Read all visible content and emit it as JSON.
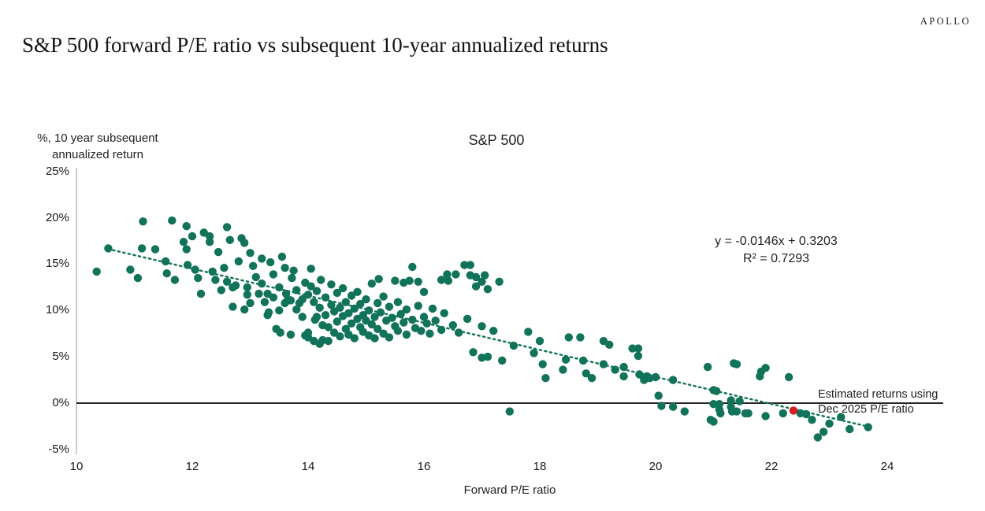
{
  "header": {
    "logo": "APOLLO",
    "title": "S&P 500 forward P/E ratio vs subsequent 10-year annualized returns"
  },
  "annotation": {
    "line1": "Estimated returns using",
    "line2": "Dec 2025 P/E ratio"
  },
  "colors": {
    "dot": "#11735a",
    "trend": "#127458",
    "highlight": "#d02026",
    "y_axis_line": "#ababab",
    "zero_line": "#262626"
  },
  "chart_data": {
    "type": "scatter",
    "title": "S&P 500",
    "xlabel": "Forward P/E ratio",
    "ylabel": "%, 10 year subsequent annualized return",
    "ylabel_lines": [
      "%, 10 year subsequent",
      "annualized return"
    ],
    "xlim": [
      10,
      25
    ],
    "ylim_percent": [
      -5,
      25
    ],
    "grid": false,
    "x_ticks": [
      10,
      12,
      14,
      16,
      18,
      20,
      22,
      24
    ],
    "y_ticks_percent": [
      25,
      20,
      15,
      10,
      5,
      0,
      -5
    ],
    "trendline": {
      "equation": "y = -0.0146x + 0.3203",
      "r_squared": "R² = 0.7293",
      "slope": -0.0146,
      "intercept": 0.3203,
      "x_range": [
        10.54,
        23.73
      ],
      "style": "dotted"
    },
    "highlight_point": {
      "x": 22.38,
      "y_percent": -0.8,
      "label": "Estimated returns using Dec 2025 P/E ratio"
    },
    "points": [
      [
        10.35,
        14.2
      ],
      [
        10.55,
        16.7
      ],
      [
        10.93,
        14.4
      ],
      [
        11.06,
        13.5
      ],
      [
        11.15,
        19.6
      ],
      [
        11.13,
        16.7
      ],
      [
        11.36,
        16.6
      ],
      [
        11.54,
        15.3
      ],
      [
        11.56,
        14.0
      ],
      [
        11.65,
        19.7
      ],
      [
        11.7,
        13.3
      ],
      [
        11.85,
        17.4
      ],
      [
        11.9,
        19.1
      ],
      [
        11.9,
        16.6
      ],
      [
        11.92,
        14.9
      ],
      [
        12.0,
        18.0
      ],
      [
        12.05,
        14.4
      ],
      [
        12.1,
        13.5
      ],
      [
        12.15,
        11.8
      ],
      [
        12.2,
        18.4
      ],
      [
        12.3,
        18.0
      ],
      [
        12.3,
        17.4
      ],
      [
        12.35,
        14.2
      ],
      [
        12.4,
        13.3
      ],
      [
        12.45,
        16.3
      ],
      [
        12.5,
        12.2
      ],
      [
        12.55,
        14.6
      ],
      [
        12.6,
        19.0
      ],
      [
        12.6,
        13.1
      ],
      [
        12.65,
        17.6
      ],
      [
        12.7,
        12.5
      ],
      [
        12.7,
        10.4
      ],
      [
        12.75,
        12.7
      ],
      [
        12.8,
        15.3
      ],
      [
        12.85,
        17.8
      ],
      [
        12.9,
        17.3
      ],
      [
        12.9,
        10.1
      ],
      [
        12.95,
        11.7
      ],
      [
        12.95,
        12.5
      ],
      [
        13.0,
        16.2
      ],
      [
        13.0,
        10.8
      ],
      [
        13.05,
        14.8
      ],
      [
        13.1,
        13.6
      ],
      [
        13.15,
        11.8
      ],
      [
        13.2,
        15.6
      ],
      [
        13.2,
        12.9
      ],
      [
        13.25,
        10.9
      ],
      [
        13.3,
        11.8
      ],
      [
        13.3,
        9.5
      ],
      [
        13.32,
        9.8
      ],
      [
        13.35,
        15.2
      ],
      [
        13.4,
        11.4
      ],
      [
        13.4,
        13.9
      ],
      [
        13.45,
        8.0
      ],
      [
        13.5,
        10.0
      ],
      [
        13.5,
        12.5
      ],
      [
        13.52,
        7.6
      ],
      [
        13.55,
        15.8
      ],
      [
        13.6,
        10.8
      ],
      [
        13.6,
        14.6
      ],
      [
        13.62,
        11.8
      ],
      [
        13.65,
        11.2
      ],
      [
        13.7,
        11.1
      ],
      [
        13.7,
        7.4
      ],
      [
        13.72,
        13.5
      ],
      [
        13.75,
        14.3
      ],
      [
        13.8,
        10.1
      ],
      [
        13.8,
        12.2
      ],
      [
        13.85,
        10.8
      ],
      [
        13.9,
        11.2
      ],
      [
        13.9,
        9.3
      ],
      [
        13.95,
        7.3
      ],
      [
        13.95,
        13.0
      ],
      [
        14.0,
        11.7
      ],
      [
        14.0,
        7.6
      ],
      [
        14.0,
        7.1
      ],
      [
        14.05,
        12.6
      ],
      [
        14.05,
        14.5
      ],
      [
        14.1,
        10.9
      ],
      [
        14.1,
        6.7
      ],
      [
        14.12,
        9.0
      ],
      [
        14.15,
        9.3
      ],
      [
        14.15,
        12.1
      ],
      [
        14.2,
        10.3
      ],
      [
        14.2,
        6.4
      ],
      [
        14.22,
        13.3
      ],
      [
        14.25,
        6.8
      ],
      [
        14.25,
        8.4
      ],
      [
        14.3,
        9.5
      ],
      [
        14.3,
        11.4
      ],
      [
        14.35,
        8.2
      ],
      [
        14.35,
        6.7
      ],
      [
        14.4,
        10.6
      ],
      [
        14.4,
        12.8
      ],
      [
        14.45,
        7.6
      ],
      [
        14.45,
        9.9
      ],
      [
        14.5,
        8.8
      ],
      [
        14.5,
        11.9
      ],
      [
        14.55,
        7.2
      ],
      [
        14.55,
        10.3
      ],
      [
        14.6,
        9.4
      ],
      [
        14.6,
        12.4
      ],
      [
        14.65,
        8.0
      ],
      [
        14.65,
        10.9
      ],
      [
        14.7,
        7.4
      ],
      [
        14.7,
        9.7
      ],
      [
        14.75,
        11.6
      ],
      [
        14.75,
        8.6
      ],
      [
        14.8,
        10.2
      ],
      [
        14.8,
        7.0
      ],
      [
        14.85,
        9.1
      ],
      [
        14.85,
        12.0
      ],
      [
        14.9,
        8.2
      ],
      [
        14.9,
        10.7
      ],
      [
        14.95,
        7.7
      ],
      [
        14.95,
        9.5
      ],
      [
        15.0,
        8.9
      ],
      [
        15.0,
        11.2
      ],
      [
        15.05,
        7.3
      ],
      [
        15.05,
        10.0
      ],
      [
        15.1,
        8.5
      ],
      [
        15.1,
        12.9
      ],
      [
        15.15,
        9.3
      ],
      [
        15.15,
        7.0
      ],
      [
        15.2,
        10.8
      ],
      [
        15.2,
        8.0
      ],
      [
        15.22,
        13.4
      ],
      [
        15.25,
        9.8
      ],
      [
        15.3,
        7.5
      ],
      [
        15.3,
        11.5
      ],
      [
        15.35,
        8.9
      ],
      [
        15.4,
        10.4
      ],
      [
        15.4,
        7.1
      ],
      [
        15.45,
        9.2
      ],
      [
        15.5,
        13.2
      ],
      [
        15.5,
        8.3
      ],
      [
        15.55,
        10.9
      ],
      [
        15.55,
        7.8
      ],
      [
        15.6,
        9.6
      ],
      [
        15.65,
        13.0
      ],
      [
        15.65,
        8.7
      ],
      [
        15.7,
        10.1
      ],
      [
        15.7,
        7.4
      ],
      [
        15.75,
        13.2
      ],
      [
        15.8,
        14.7
      ],
      [
        15.8,
        9.0
      ],
      [
        15.85,
        8.1
      ],
      [
        15.9,
        13.1
      ],
      [
        15.9,
        10.5
      ],
      [
        15.95,
        7.8
      ],
      [
        16.0,
        9.3
      ],
      [
        16.0,
        12.0
      ],
      [
        16.05,
        8.6
      ],
      [
        16.1,
        7.5
      ],
      [
        16.15,
        10.2
      ],
      [
        16.2,
        8.9
      ],
      [
        16.3,
        13.3
      ],
      [
        16.3,
        7.9
      ],
      [
        16.35,
        9.7
      ],
      [
        16.4,
        13.9
      ],
      [
        16.42,
        13.2
      ],
      [
        16.5,
        8.4
      ],
      [
        16.55,
        13.9
      ],
      [
        16.6,
        7.6
      ],
      [
        16.7,
        14.9
      ],
      [
        16.75,
        9.1
      ],
      [
        16.8,
        14.9
      ],
      [
        16.8,
        13.8
      ],
      [
        16.85,
        5.5
      ],
      [
        16.9,
        13.6
      ],
      [
        16.9,
        12.6
      ],
      [
        17.0,
        13.1
      ],
      [
        17.0,
        4.9
      ],
      [
        17.0,
        8.3
      ],
      [
        17.05,
        13.8
      ],
      [
        17.1,
        12.3
      ],
      [
        17.1,
        5.0
      ],
      [
        17.2,
        7.8
      ],
      [
        17.3,
        13.1
      ],
      [
        17.35,
        4.6
      ],
      [
        17.48,
        -0.9
      ],
      [
        17.55,
        6.2
      ],
      [
        17.8,
        7.7
      ],
      [
        17.9,
        5.4
      ],
      [
        18.0,
        6.7
      ],
      [
        18.05,
        4.2
      ],
      [
        18.1,
        2.7
      ],
      [
        18.4,
        3.6
      ],
      [
        18.45,
        4.7
      ],
      [
        18.5,
        7.1
      ],
      [
        18.7,
        7.1
      ],
      [
        18.75,
        4.6
      ],
      [
        18.8,
        3.2
      ],
      [
        18.9,
        2.7
      ],
      [
        19.1,
        6.7
      ],
      [
        19.1,
        4.2
      ],
      [
        19.2,
        6.3
      ],
      [
        19.3,
        3.6
      ],
      [
        19.45,
        3.9
      ],
      [
        19.45,
        2.9
      ],
      [
        19.6,
        5.9
      ],
      [
        19.7,
        5.9
      ],
      [
        19.7,
        5.1
      ],
      [
        19.72,
        3.1
      ],
      [
        19.8,
        2.5
      ],
      [
        19.85,
        2.9
      ],
      [
        19.9,
        2.7
      ],
      [
        20.0,
        2.8
      ],
      [
        20.05,
        0.8
      ],
      [
        20.1,
        -0.3
      ],
      [
        20.3,
        2.5
      ],
      [
        20.3,
        -0.4
      ],
      [
        20.5,
        -0.9
      ],
      [
        20.9,
        3.9
      ],
      [
        20.95,
        -1.8
      ],
      [
        21.0,
        1.4
      ],
      [
        21.0,
        -0.1
      ],
      [
        21.0,
        -2.0
      ],
      [
        21.05,
        1.3
      ],
      [
        21.1,
        -0.1
      ],
      [
        21.1,
        -0.7
      ],
      [
        21.12,
        -1.1
      ],
      [
        21.3,
        0.3
      ],
      [
        21.3,
        -0.4
      ],
      [
        21.32,
        -0.9
      ],
      [
        21.35,
        4.3
      ],
      [
        21.4,
        -0.9
      ],
      [
        21.4,
        4.2
      ],
      [
        21.45,
        0.2
      ],
      [
        21.55,
        -1.1
      ],
      [
        21.6,
        -1.1
      ],
      [
        21.8,
        2.9
      ],
      [
        21.82,
        3.4
      ],
      [
        21.9,
        3.8
      ],
      [
        21.9,
        -1.4
      ],
      [
        22.2,
        -1.1
      ],
      [
        22.3,
        2.8
      ],
      [
        22.5,
        -1.1
      ],
      [
        22.6,
        -1.2
      ],
      [
        22.7,
        -1.8
      ],
      [
        22.8,
        -3.7
      ],
      [
        22.9,
        -3.1
      ],
      [
        23.0,
        -2.2
      ],
      [
        23.2,
        -1.5
      ],
      [
        23.35,
        -2.8
      ],
      [
        23.67,
        -2.6
      ]
    ]
  }
}
